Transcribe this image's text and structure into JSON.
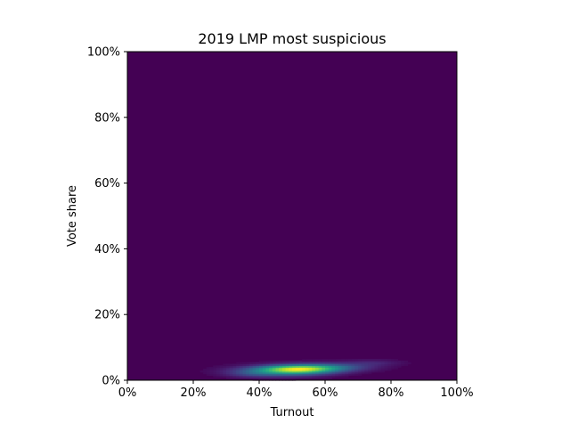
{
  "chart_data": {
    "type": "heatmap",
    "title": "2019 LMP most suspicious",
    "xlabel": "Turnout",
    "ylabel": "Vote share",
    "xlim": [
      0,
      100
    ],
    "ylim": [
      0,
      100
    ],
    "x_ticks": [
      0,
      20,
      40,
      60,
      80,
      100
    ],
    "y_ticks": [
      0,
      20,
      40,
      60,
      80,
      100
    ],
    "x_tick_labels": [
      "0%",
      "20%",
      "40%",
      "60%",
      "80%",
      "100%"
    ],
    "y_tick_labels": [
      "0%",
      "20%",
      "40%",
      "60%",
      "80%",
      "100%"
    ],
    "colormap": "viridis",
    "background_color": "#440154",
    "grid": false,
    "density_clusters": [
      {
        "turnout_center": 52,
        "vote_share_center": 3.5,
        "turnout_spread": 8,
        "vote_share_spread": 0.9,
        "intensity": 1.0
      },
      {
        "turnout_center": 46,
        "vote_share_center": 2.8,
        "turnout_spread": 10,
        "vote_share_spread": 1.1,
        "intensity": 0.45
      },
      {
        "turnout_center": 62,
        "vote_share_center": 4.2,
        "turnout_spread": 9,
        "vote_share_spread": 0.9,
        "intensity": 0.35
      },
      {
        "turnout_center": 75,
        "vote_share_center": 5.5,
        "turnout_spread": 6,
        "vote_share_spread": 0.6,
        "intensity": 0.12
      },
      {
        "turnout_center": 38,
        "vote_share_center": 2.0,
        "turnout_spread": 5,
        "vote_share_spread": 0.7,
        "intensity": 0.12
      }
    ]
  }
}
